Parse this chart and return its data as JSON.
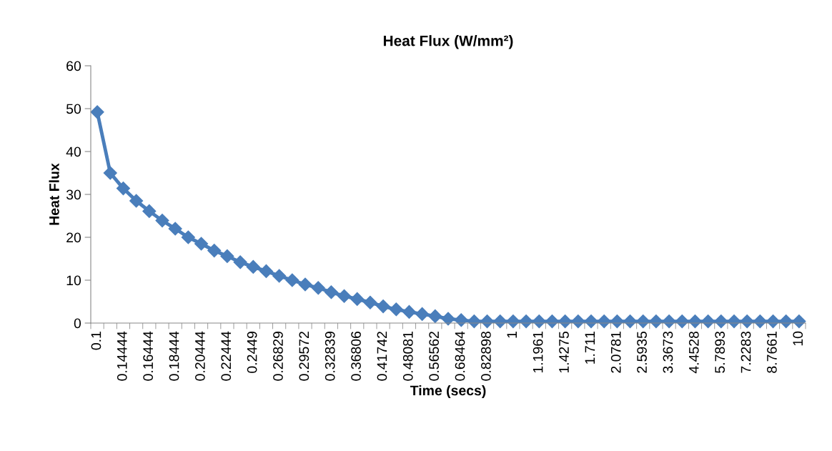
{
  "chart_data": {
    "type": "line",
    "title": "Heat Flux (W/mm²)",
    "xlabel": "Time (secs)",
    "ylabel": "Heat Flux",
    "categories": [
      "0.1",
      null,
      "0.14444",
      null,
      "0.16444",
      null,
      "0.18444",
      null,
      "0.20444",
      null,
      "0.22444",
      null,
      "0.2449",
      null,
      "0.26829",
      null,
      "0.29572",
      null,
      "0.32839",
      null,
      "0.36806",
      null,
      "0.41742",
      null,
      "0.48081",
      null,
      "0.56562",
      null,
      "0.68464",
      null,
      "0.82898",
      null,
      "1",
      null,
      "1.1961",
      null,
      "1.4275",
      null,
      "1.711",
      null,
      "2.0781",
      null,
      "2.5935",
      null,
      "3.3673",
      null,
      "4.4528",
      null,
      "5.7893",
      null,
      "7.2283",
      null,
      "8.7661",
      null,
      "10"
    ],
    "series": [
      {
        "color": "#4a7ebb",
        "values": [
          49.2,
          35.0,
          31.4,
          28.5,
          26.1,
          23.9,
          22.0,
          20.0,
          18.5,
          16.9,
          15.6,
          14.2,
          13.1,
          12.1,
          11.0,
          10.0,
          9.0,
          8.2,
          7.2,
          6.3,
          5.6,
          4.8,
          3.9,
          3.2,
          2.6,
          2.1,
          1.6,
          1.0,
          0.7,
          0.4,
          0.4,
          0.4,
          0.4,
          0.4,
          0.4,
          0.4,
          0.4,
          0.4,
          0.4,
          0.4,
          0.4,
          0.4,
          0.4,
          0.4,
          0.4,
          0.4,
          0.4,
          0.4,
          0.4,
          0.4,
          0.4,
          0.4,
          0.4,
          0.4,
          0.4
        ]
      }
    ],
    "ylim": [
      0,
      60
    ],
    "yticks": [
      0,
      10,
      20,
      30,
      40,
      50,
      60
    ],
    "grid": false,
    "marker": "diamond",
    "line_style": "solid"
  }
}
